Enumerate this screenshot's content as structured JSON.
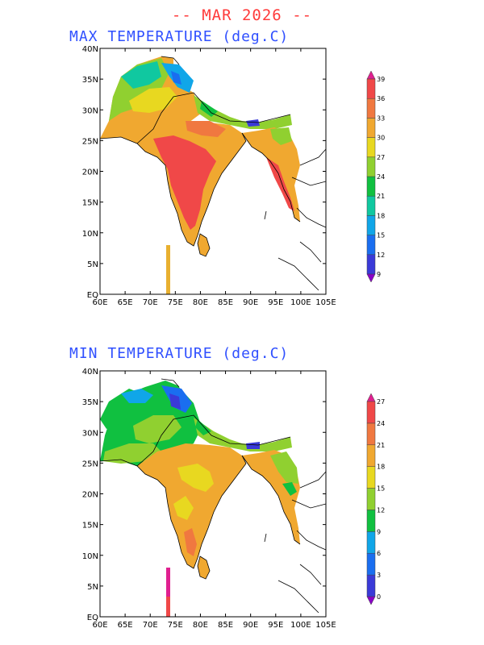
{
  "header": {
    "title": "-- MAR 2026 --"
  },
  "panels": [
    {
      "title": "MAX TEMPERATURE (deg.C)",
      "x_ticks": [
        "60E",
        "65E",
        "70E",
        "75E",
        "80E",
        "85E",
        "90E",
        "95E",
        "100E",
        "105E"
      ],
      "y_ticks": [
        "EQ",
        "5N",
        "10N",
        "15N",
        "20N",
        "25N",
        "30N",
        "35N",
        "40N"
      ],
      "colorbar": {
        "levels": [
          "9",
          "12",
          "15",
          "18",
          "21",
          "24",
          "27",
          "30",
          "33",
          "36",
          "39"
        ],
        "colors": [
          "#8a00c8",
          "#3a3ad8",
          "#1a6ef0",
          "#10a6e8",
          "#10c8a0",
          "#10c040",
          "#90d030",
          "#e8d820",
          "#f0a830",
          "#f07840",
          "#f04848",
          "#e02090"
        ]
      }
    },
    {
      "title": "MIN TEMPERATURE (deg.C)",
      "x_ticks": [
        "60E",
        "65E",
        "70E",
        "75E",
        "80E",
        "85E",
        "90E",
        "95E",
        "100E",
        "105E"
      ],
      "y_ticks": [
        "EQ",
        "5N",
        "10N",
        "15N",
        "20N",
        "25N",
        "30N",
        "35N",
        "40N"
      ],
      "colorbar": {
        "levels": [
          "0",
          "3",
          "6",
          "9",
          "12",
          "15",
          "18",
          "21",
          "24",
          "27"
        ],
        "colors": [
          "#8a00c8",
          "#3a3ad8",
          "#1a6ef0",
          "#10a6e8",
          "#10c040",
          "#90d030",
          "#e8d820",
          "#f0a830",
          "#f07840",
          "#f04848",
          "#e02090"
        ]
      }
    }
  ]
}
